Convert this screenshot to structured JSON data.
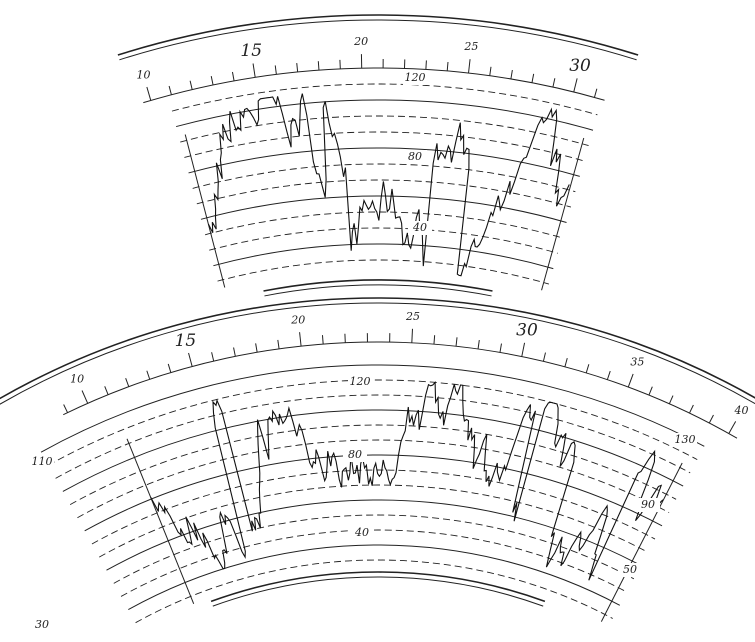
{
  "upper": {
    "scale_labels": [
      "10",
      "15",
      "20",
      "25",
      "30"
    ],
    "value_labels": [
      "120",
      "80",
      "40"
    ]
  },
  "lower": {
    "scale_labels": [
      "10",
      "15",
      "20",
      "25",
      "30",
      "35",
      "40"
    ],
    "value_labels": [
      "120",
      "110",
      "130",
      "80",
      "90",
      "40",
      "50",
      "30"
    ]
  }
}
